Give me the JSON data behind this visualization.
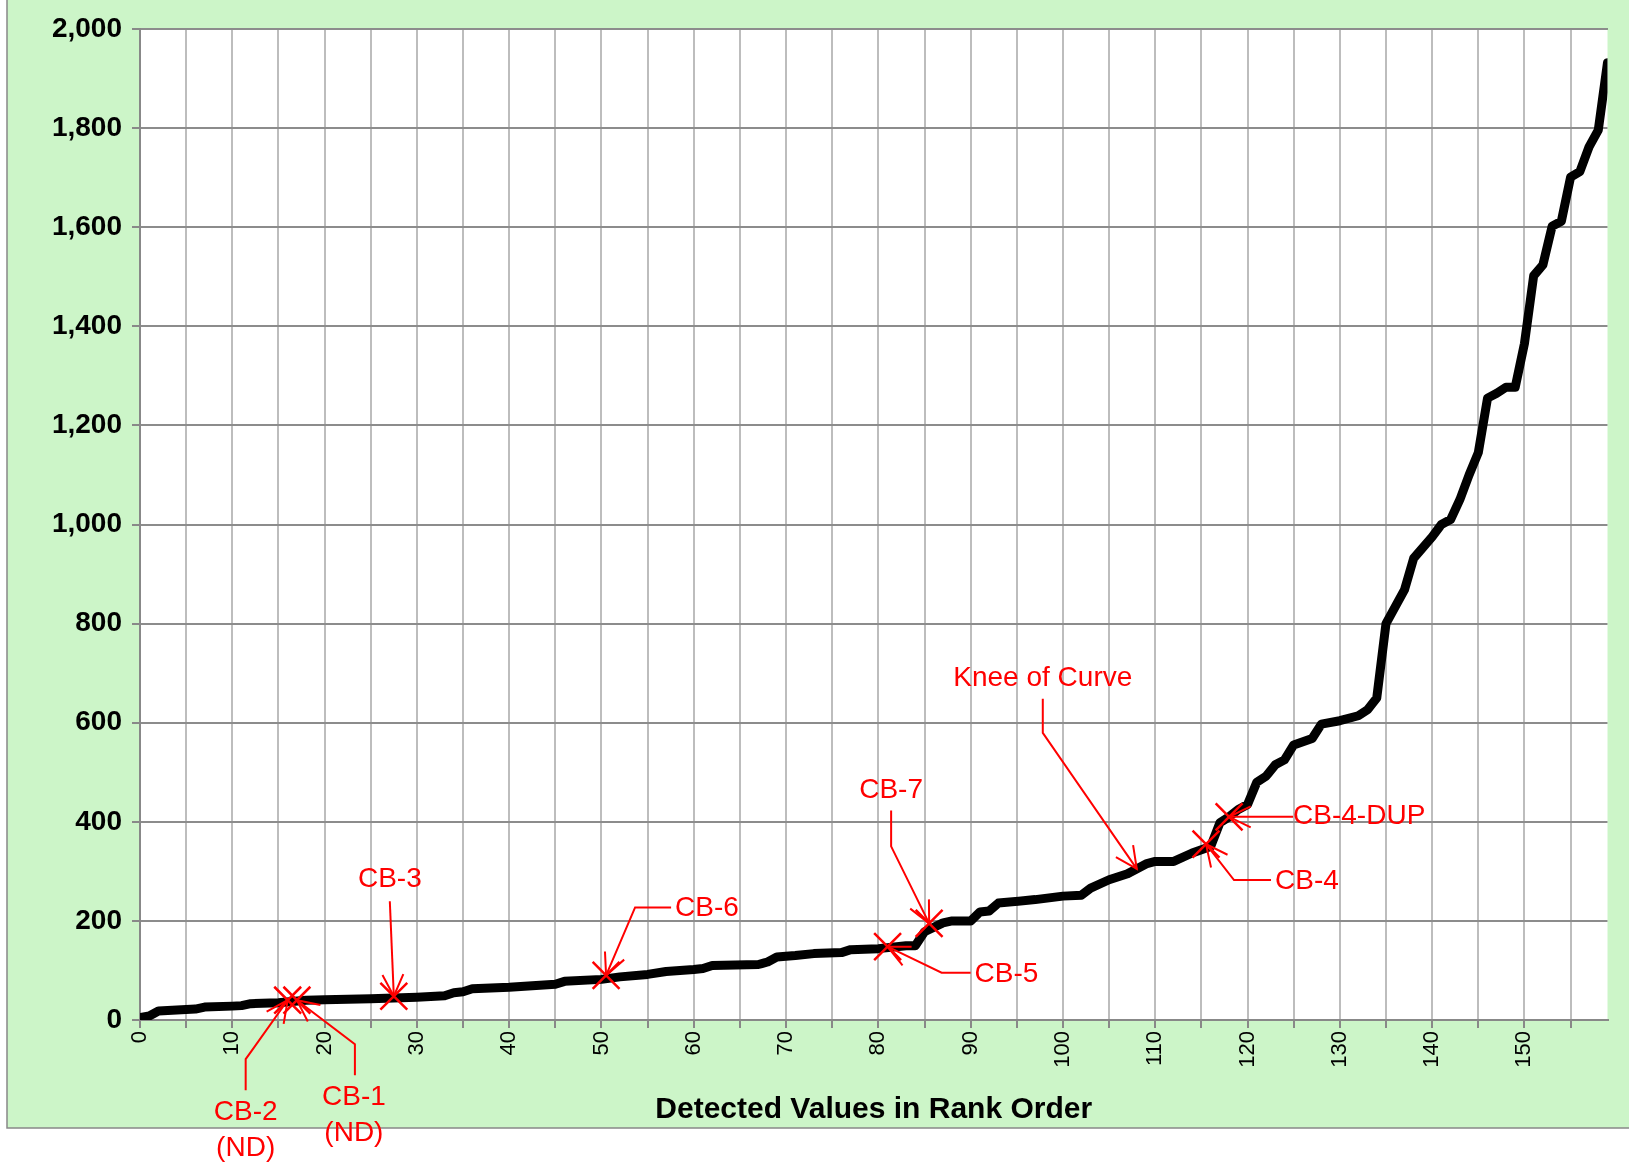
{
  "chart_data": {
    "type": "line",
    "xlabel": "Detected Values in Rank Order",
    "xlim": [
      0,
      159
    ],
    "xticks": [
      0,
      {
        "value": 5,
        "label": null
      },
      10,
      {
        "value": 15,
        "label": null
      },
      20,
      {
        "value": 25,
        "label": null
      },
      30,
      {
        "value": 35,
        "label": null
      },
      40,
      {
        "value": 45,
        "label": null
      },
      50,
      {
        "value": 55,
        "label": null
      },
      60,
      {
        "value": 65,
        "label": null
      },
      70,
      {
        "value": 75,
        "label": null
      },
      80,
      {
        "value": 85,
        "label": null
      },
      90,
      {
        "value": 95,
        "label": null
      },
      100,
      {
        "value": 105,
        "label": null
      },
      110,
      {
        "value": 115,
        "label": null
      },
      120,
      {
        "value": 125,
        "label": null
      },
      130,
      {
        "value": 135,
        "label": null
      },
      140,
      {
        "value": 145,
        "label": null
      },
      150,
      {
        "value": 155,
        "label": null
      }
    ],
    "ylim": [
      0,
      2000
    ],
    "yticks": [
      0,
      200,
      400,
      600,
      800,
      {
        "value": 1000,
        "label": "1,000"
      },
      {
        "value": 1200,
        "label": "1,200"
      },
      {
        "value": 1400,
        "label": "1,400"
      },
      {
        "value": 1600,
        "label": "1,600"
      },
      {
        "value": 1800,
        "label": "1,800"
      },
      {
        "value": 2000,
        "label": "2,000"
      }
    ],
    "grid": true,
    "legend": false,
    "series": [
      {
        "color": "#000000",
        "line_style": "solid",
        "marker": "none",
        "x": [
          0,
          1,
          2,
          5,
          6,
          7,
          10,
          11,
          12,
          15,
          18,
          20,
          25,
          30,
          33,
          34,
          35,
          36,
          40,
          45,
          46,
          50,
          52,
          55,
          57,
          60,
          61,
          62,
          67,
          68,
          69,
          71,
          73,
          76,
          77,
          80,
          83,
          84,
          85,
          87,
          88,
          90,
          91,
          92,
          93,
          97,
          100,
          102,
          103,
          105,
          107,
          109,
          110,
          112,
          114,
          116,
          117,
          118,
          119,
          120,
          121,
          122,
          123,
          124,
          125,
          127,
          128,
          130,
          132,
          133,
          134,
          135,
          137,
          138,
          140,
          141,
          142,
          143,
          144,
          145,
          146,
          147,
          148,
          149,
          150,
          151,
          152,
          153,
          154,
          155,
          156,
          157,
          158,
          159
        ],
        "values": [
          5,
          8,
          18,
          21,
          22,
          26,
          28,
          29,
          33,
          35,
          40,
          41,
          43,
          46,
          49,
          55,
          57,
          63,
          66,
          72,
          78,
          82,
          87,
          92,
          98,
          102,
          104,
          110,
          112,
          117,
          127,
          130,
          134,
          136,
          142,
          144,
          150,
          150,
          178,
          196,
          200,
          200,
          218,
          220,
          236,
          243,
          250,
          252,
          266,
          283,
          295,
          315,
          320,
          320,
          337,
          350,
          398,
          410,
          425,
          435,
          480,
          492,
          515,
          525,
          555,
          568,
          597,
          604,
          614,
          626,
          650,
          800,
          868,
          932,
          975,
          1000,
          1010,
          1050,
          1100,
          1145,
          1255,
          1265,
          1277,
          1277,
          1365,
          1502,
          1524,
          1602,
          1612,
          1701,
          1712,
          1762,
          1796,
          1932
        ]
      },
      {
        "type": "scatter",
        "color": "#ff0000",
        "marker": "cross",
        "x": [
          16,
          17,
          27.5,
          50.5,
          81,
          85.5,
          115.5,
          118
        ],
        "values": [
          40,
          40,
          48,
          90,
          148,
          195,
          355,
          410
        ]
      }
    ],
    "annotations": [
      {
        "text": "CB-2\n(ND)",
        "x": 16,
        "y": 40
      },
      {
        "text": "CB-1\n(ND)",
        "x": 17,
        "y": 40
      },
      {
        "text": "CB-3",
        "x": 27.5,
        "y": 48
      },
      {
        "text": "CB-6",
        "x": 50.5,
        "y": 90
      },
      {
        "text": "CB-5",
        "x": 81,
        "y": 148
      },
      {
        "text": "CB-7",
        "x": 85.5,
        "y": 195
      },
      {
        "text": "Knee of Curve",
        "x": 108,
        "y": 305
      },
      {
        "text": "CB-4",
        "x": 115.5,
        "y": 355
      },
      {
        "text": "CB-4-DUP",
        "x": 118,
        "y": 410
      }
    ]
  }
}
